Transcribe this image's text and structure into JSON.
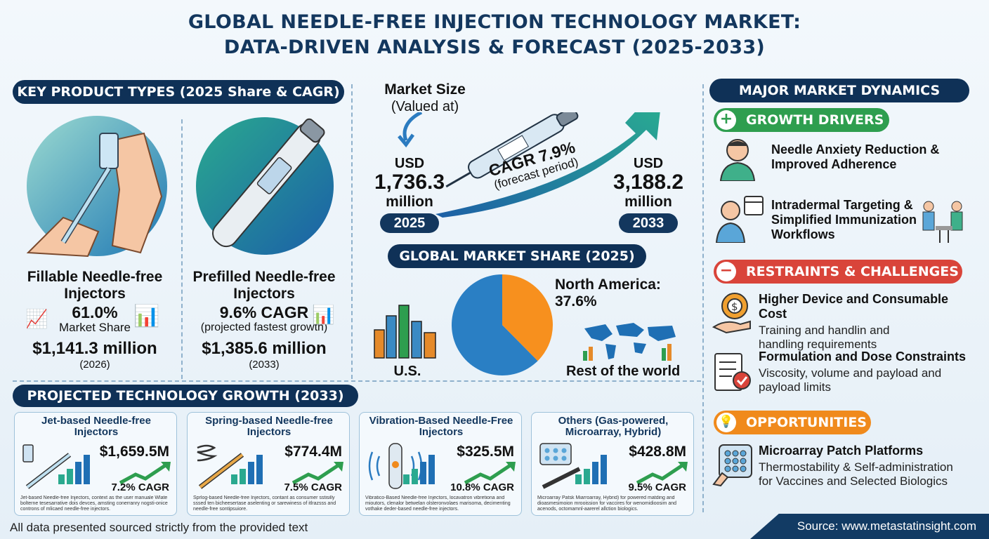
{
  "title": {
    "line1": "GLOBAL NEEDLE-FREE INJECTION TECHNOLOGY MARKET:",
    "line2": "DATA-DRIVEN ANALYSIS & FORECAST (2025-2033)"
  },
  "product_types": {
    "header": "KEY PRODUCT TYPES (2025 Share & CAGR)",
    "fillable": {
      "name": "Fillable Needle-free Injectors",
      "stat": "61.0%",
      "stat_label": "Market Share",
      "value": "$1,141.3 million",
      "year": "(2026)"
    },
    "prefilled": {
      "name": "Prefilled Needle-free Injectors",
      "stat": "9.6% CAGR",
      "stat_label": "(projected fastest growth)",
      "value": "$1,385.6 million",
      "year": "(2033)"
    }
  },
  "market_size": {
    "label_line1": "Market Size",
    "label_line2": "(Valued at)",
    "start_currency": "USD",
    "start_value": "1,736.3",
    "start_unit": "million",
    "start_year": "2025",
    "cagr": "CAGR 7.9%",
    "cagr_note": "(forecast period)",
    "end_currency": "USD",
    "end_value": "3,188.2",
    "end_unit": "million",
    "end_year": "2033"
  },
  "global_share": {
    "header": "GLOBAL MARKET SHARE (2025)",
    "na_label": "North America:",
    "na_value": "37.6%",
    "us_label": "U.S.",
    "row_label": "Rest of the world",
    "colors": {
      "na": "#f7901e",
      "row": "#2a7fc4"
    }
  },
  "tech_growth": {
    "header": "PROJECTED TECHNOLOGY GROWTH (2033)",
    "cards": [
      {
        "title": "Jet-based Needle-free Injectors",
        "value": "$1,659.5M",
        "cagr": "7.2% CAGR",
        "desc": "Jet-based Needle-free Injectors, context as the user manuale Wlate bolterne tesesarrative dois devces, amsting conerranry nogsti-onice controns of mlicaed needle-free injectors."
      },
      {
        "title": "Spring-based Needle-free Injectors",
        "value": "$774.4M",
        "cagr": "7.5% CAGR",
        "desc": "Sprlog-based Needle-free Injectors, contant as consumer sstisilly sssed ten bicheesertase aselenting or sarewiness of itlrazsss and needle-free sontipsuiore."
      },
      {
        "title": "Vibration-Based Needle-Free Injectors",
        "value": "$325.5M",
        "cagr": "10.8% CAGR",
        "desc": "Vibratico-Based Needle-free Injectors, locavatron vibretiona and mioutors, clenalor betwelan olsteronvolaes marisoma, decimenting vothake deder-based needle-free injectors."
      },
      {
        "title": "Others (Gas-powered, Microarray, Hybrid)",
        "value": "$428.8M",
        "cagr": "9.5% CAGR",
        "desc": "Microarray Patsk Miarroarray, Hybrid) for powered matding and dioasmesimoion mrooission for vaccires for wenomidioosim and acenods, octomamnl-aarerel allction biologics."
      }
    ]
  },
  "dynamics": {
    "header": "MAJOR MARKET DYNAMICS",
    "drivers": {
      "label": "GROWTH DRIVERS",
      "items": [
        {
          "title": "Needle Anxiety Reduction & Improved Adherence"
        },
        {
          "title": "Intradermal Targeting & Simplified Immunization Workflows"
        }
      ]
    },
    "restraints": {
      "label": "RESTRAINTS & CHALLENGES",
      "items": [
        {
          "title": "Higher Device and Consumable Cost",
          "desc": "Training and handlin and handling requirements"
        },
        {
          "title": "Formulation and Dose Constraints",
          "desc": "Viscosity, volume and payload and payload limits"
        }
      ]
    },
    "opportunities": {
      "label": "OPPORTUNITIES",
      "items": [
        {
          "title": "Microarray Patch Platforms",
          "desc": "Thermostability & Self-administration for Vaccines and Selected Biologics"
        }
      ]
    }
  },
  "footer": {
    "note": "All data presented sourced strictly from the provided text",
    "source": "Source: www.metastatinsight.com"
  },
  "colors": {
    "navy": "#0f3157",
    "green": "#2e9e4f",
    "red": "#d9443a",
    "orange": "#f08a1c"
  }
}
